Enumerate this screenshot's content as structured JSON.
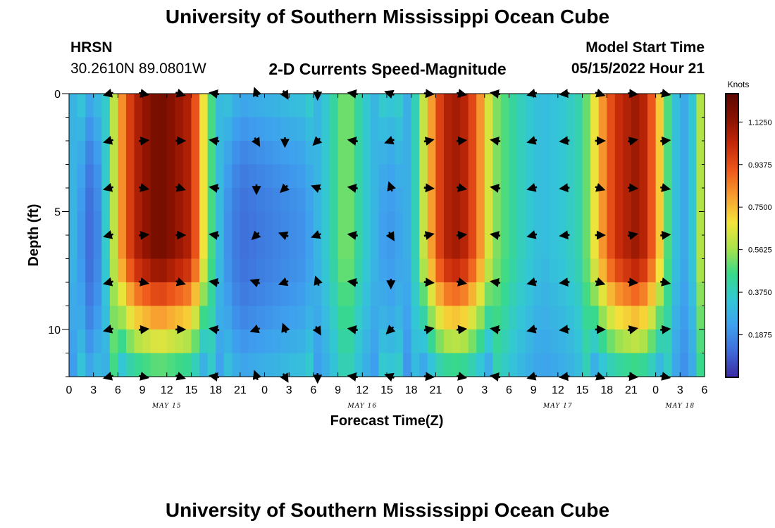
{
  "page": {
    "title": "University of Southern Mississippi Ocean Cube",
    "footer_title": "University of Southern Mississippi Ocean Cube"
  },
  "header": {
    "station": "HRSN",
    "coords": "30.2610N  89.0801W",
    "subtitle": "2-D Currents Speed-Magnitude",
    "model_label": "Model Start Time",
    "model_time": "05/15/2022 Hour 21"
  },
  "colorbar": {
    "label": "Knots",
    "ticks": [
      "0.1875",
      "0.3750",
      "0.5625",
      "0.7500",
      "0.9375",
      "1.1250"
    ],
    "range": [
      0,
      1.25
    ],
    "colors": [
      "#3b2aa0",
      "#3f6bd9",
      "#3fa0ef",
      "#33c7d6",
      "#38d98a",
      "#a9e34a",
      "#f5e43a",
      "#f7a030",
      "#ef5a1c",
      "#c62a0a",
      "#8a1200",
      "#5c0800"
    ]
  },
  "chart_data": {
    "type": "heatmap",
    "title": "2-D Currents Speed-Magnitude",
    "xlabel": "Forecast Time(Z)",
    "ylabel": "Depth (ft)",
    "xlim": [
      0,
      78
    ],
    "ylim": [
      0,
      12
    ],
    "x_tick_labels": [
      "0",
      "3",
      "6",
      "9",
      "12",
      "15",
      "18",
      "21",
      "0",
      "3",
      "6",
      "9",
      "12",
      "15",
      "18",
      "21",
      "0",
      "3",
      "6",
      "9",
      "12",
      "15",
      "18",
      "21",
      "0",
      "3",
      "6"
    ],
    "y_ticks": [
      0,
      5,
      10
    ],
    "date_labels": [
      {
        "x": 12,
        "label": "MAY 15"
      },
      {
        "x": 36,
        "label": "MAY 16"
      },
      {
        "x": 60,
        "label": "MAY 17"
      },
      {
        "x": 75,
        "label": "MAY 18"
      }
    ],
    "speed_units": "knots",
    "speed_time_profile": [
      {
        "x": 0,
        "v": 0.32
      },
      {
        "x": 1,
        "v": 0.25
      },
      {
        "x": 3,
        "v": 0.08
      },
      {
        "x": 5,
        "v": 0.45
      },
      {
        "x": 6,
        "v": 0.75
      },
      {
        "x": 8,
        "v": 1.05
      },
      {
        "x": 11,
        "v": 1.2
      },
      {
        "x": 15,
        "v": 1.05
      },
      {
        "x": 17,
        "v": 0.55
      },
      {
        "x": 19,
        "v": 0.22
      },
      {
        "x": 21,
        "v": 0.12
      },
      {
        "x": 25,
        "v": 0.16
      },
      {
        "x": 29,
        "v": 0.2
      },
      {
        "x": 32,
        "v": 0.38
      },
      {
        "x": 34,
        "v": 0.55
      },
      {
        "x": 36,
        "v": 0.38
      },
      {
        "x": 39,
        "v": 0.2
      },
      {
        "x": 42,
        "v": 0.28
      },
      {
        "x": 44,
        "v": 0.72
      },
      {
        "x": 46,
        "v": 1.05
      },
      {
        "x": 48,
        "v": 1.1
      },
      {
        "x": 50,
        "v": 0.9
      },
      {
        "x": 52,
        "v": 0.55
      },
      {
        "x": 55,
        "v": 0.4
      },
      {
        "x": 58,
        "v": 0.3
      },
      {
        "x": 61,
        "v": 0.35
      },
      {
        "x": 63,
        "v": 0.42
      },
      {
        "x": 65,
        "v": 0.75
      },
      {
        "x": 67,
        "v": 1.0
      },
      {
        "x": 70,
        "v": 1.12
      },
      {
        "x": 72,
        "v": 0.85
      },
      {
        "x": 74,
        "v": 0.35
      },
      {
        "x": 76,
        "v": 0.22
      },
      {
        "x": 78,
        "v": 0.7
      }
    ],
    "vector_rows_depth_ft": [
      0,
      2,
      4,
      6,
      8,
      10,
      12
    ],
    "vector_times": [
      5,
      9,
      13.5,
      18,
      23,
      26.5,
      30.5,
      35,
      39.5,
      44,
      48,
      52.5,
      57,
      61,
      65,
      69,
      73
    ]
  }
}
